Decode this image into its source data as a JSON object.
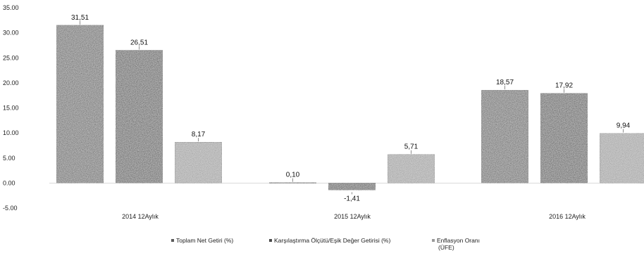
{
  "chart_data": {
    "type": "bar",
    "categories": [
      "2014 12Aylık",
      "2015 12Aylık",
      "2016 12Aylık"
    ],
    "series": [
      {
        "name": "Toplam Net Getiri (%)",
        "values": [
          31.51,
          0.1,
          18.57
        ],
        "labels": [
          "31,51",
          "0,10",
          "18,57"
        ],
        "color": "#5a5a5a"
      },
      {
        "name": "Karşılaştırma Ölçütü/Eşik Değer Getirisi (%)",
        "values": [
          26.51,
          -1.41,
          17.92
        ],
        "labels": [
          "26,51",
          "-1,41",
          "17,92"
        ],
        "color": "#4a4a4a"
      },
      {
        "name": "Enflasyon Oranı (ÜFE)",
        "values": [
          8.17,
          5.71,
          9.94
        ],
        "labels": [
          "8,17",
          "5,71",
          "9,94"
        ],
        "color": "#9a9a9a"
      }
    ],
    "y_ticks": [
      "35.00",
      "30.00",
      "25.00",
      "20.00",
      "15.00",
      "10.00",
      "5.00",
      "0.00",
      "-5.00"
    ],
    "ylim": [
      -5,
      35
    ],
    "legend_position": "bottom"
  }
}
